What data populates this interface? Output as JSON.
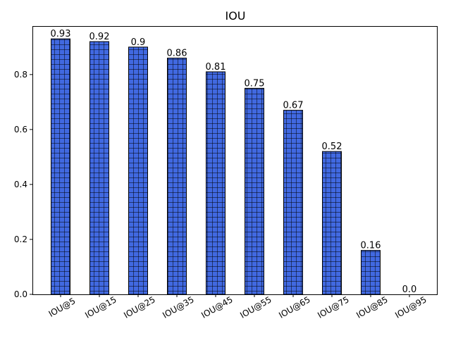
{
  "chart_data": {
    "type": "bar",
    "title": "IOU",
    "xlabel": "",
    "ylabel": "",
    "categories": [
      "IOU@5",
      "IOU@15",
      "IOU@25",
      "IOU@35",
      "IOU@45",
      "IOU@55",
      "IOU@65",
      "IOU@75",
      "IOU@85",
      "IOU@95"
    ],
    "values": [
      0.93,
      0.92,
      0.9,
      0.86,
      0.81,
      0.75,
      0.67,
      0.52,
      0.16,
      0.0
    ],
    "data_labels": [
      "0.93",
      "0.92",
      "0.9",
      "0.86",
      "0.81",
      "0.75",
      "0.67",
      "0.52",
      "0.16",
      "0.0"
    ],
    "ylim": [
      0,
      0.9765
    ],
    "yticks": [
      0.0,
      0.2,
      0.4,
      0.6,
      0.8
    ],
    "ytick_labels": [
      "0.0",
      "0.2",
      "0.4",
      "0.6",
      "0.8"
    ],
    "grid": false,
    "legend": false,
    "bar_color": "#4169e1",
    "edge_color": "#000000",
    "hatch": "grid"
  }
}
